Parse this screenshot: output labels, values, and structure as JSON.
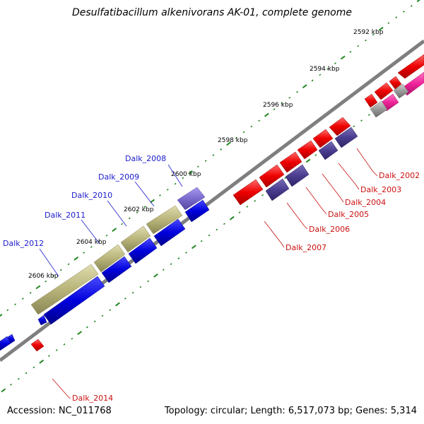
{
  "title": "Desulfatibacillum alkenivorans AK-01, complete genome",
  "footer": {
    "accession": "Accession: NC_011768",
    "info": "Topology: circular; Length: 6,517,073 bp; Genes: 5,314"
  },
  "ticks": [
    "2592 kbp",
    "2594 kbp",
    "2596 kbp",
    "2598 kbp",
    "2600 kbp",
    "2602 kbp",
    "2604 kbp",
    "2606 kbp"
  ],
  "genes": {
    "dalk_2008": "Dalk_2008",
    "dalk_2009": "Dalk_2009",
    "dalk_2010": "Dalk_2010",
    "dalk_2011": "Dalk_2011",
    "dalk_2012": "Dalk_2012",
    "dalk_2002": "Dalk_2002",
    "dalk_2003": "Dalk_2003",
    "dalk_2004": "Dalk_2004",
    "dalk_2005": "Dalk_2005",
    "dalk_2006": "Dalk_2006",
    "dalk_2007": "Dalk_2007",
    "dalk_2014": "Dalk_2014"
  },
  "colors": {
    "backbone": "#808080",
    "tick_dots": "#228822",
    "gene_red": "#ee0000",
    "gene_blue": "#0000dd",
    "gene_navy": "#4a3d8f",
    "gene_olive": "#b8b47a",
    "gene_violet": "#7a6acc",
    "gene_pink": "#ee2299",
    "gene_grey": "#9a9a9a",
    "label_blue": "#1a1acc",
    "label_red": "#cc1111"
  }
}
